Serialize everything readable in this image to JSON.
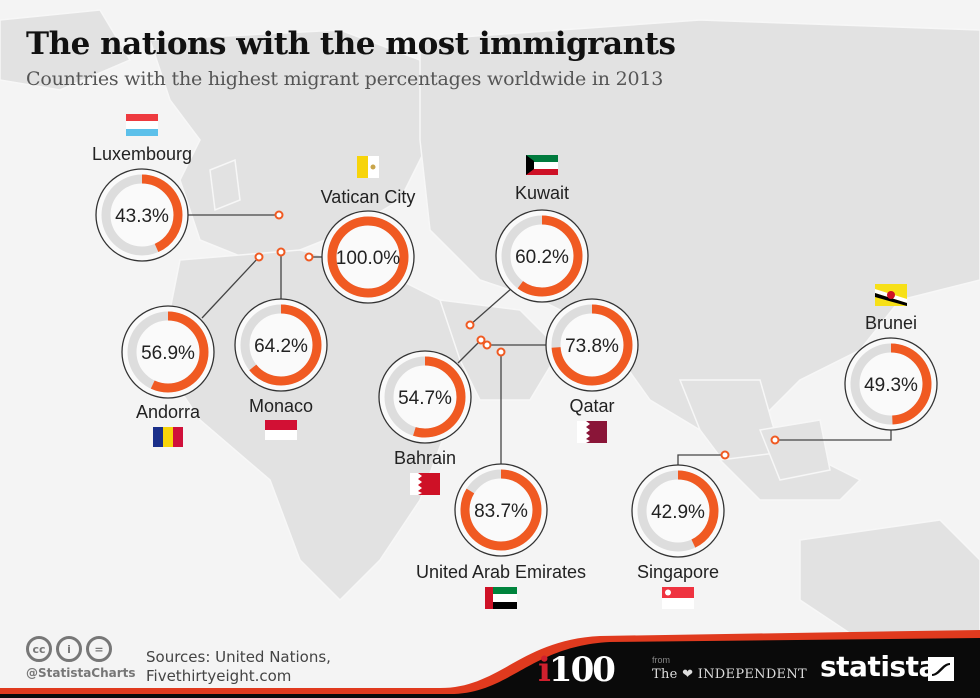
{
  "header": {
    "title": "The nations with the most immigrants",
    "subtitle": "Countries with the highest migrant percentages worldwide in 2013"
  },
  "chart_data": {
    "type": "donut-map",
    "title": "The nations with the most immigrants",
    "subtitle": "Countries with the highest migrant percentages worldwide in 2013",
    "unit": "%",
    "max": 100,
    "items": [
      {
        "country": "Luxembourg",
        "value": 43.3,
        "label": "43.3%",
        "flag": "luxembourg-flag"
      },
      {
        "country": "Vatican City",
        "value": 100.0,
        "label": "100.0%",
        "flag": "vatican-flag"
      },
      {
        "country": "Andorra",
        "value": 56.9,
        "label": "56.9%",
        "flag": "andorra-flag"
      },
      {
        "country": "Monaco",
        "value": 64.2,
        "label": "64.2%",
        "flag": "monaco-flag"
      },
      {
        "country": "Kuwait",
        "value": 60.2,
        "label": "60.2%",
        "flag": "kuwait-flag"
      },
      {
        "country": "Qatar",
        "value": 73.8,
        "label": "73.8%",
        "flag": "qatar-flag"
      },
      {
        "country": "Bahrain",
        "value": 54.7,
        "label": "54.7%",
        "flag": "bahrain-flag"
      },
      {
        "country": "United Arab Emirates",
        "value": 83.7,
        "label": "83.7%",
        "flag": "uae-flag"
      },
      {
        "country": "Singapore",
        "value": 42.9,
        "label": "42.9%",
        "flag": "singapore-flag"
      },
      {
        "country": "Brunei",
        "value": 49.3,
        "label": "49.3%",
        "flag": "brunei-flag"
      }
    ],
    "colors": {
      "fill": "#f05a22",
      "track": "#dddddd",
      "outline": "#333333"
    }
  },
  "footer": {
    "cc_icons": [
      "cc",
      "by",
      "nd"
    ],
    "cc_labels": [
      "cc",
      "i",
      "="
    ],
    "handle": "@StatistaCharts",
    "sources_line1": "Sources:  United Nations,",
    "sources_line2": "Fivethirtyeight.com",
    "brand_i100_i": "i",
    "brand_i100_num": "100",
    "brand_from": "from",
    "brand_independent": "The ❤ INDEPENDENT",
    "brand_statista": "statista"
  }
}
